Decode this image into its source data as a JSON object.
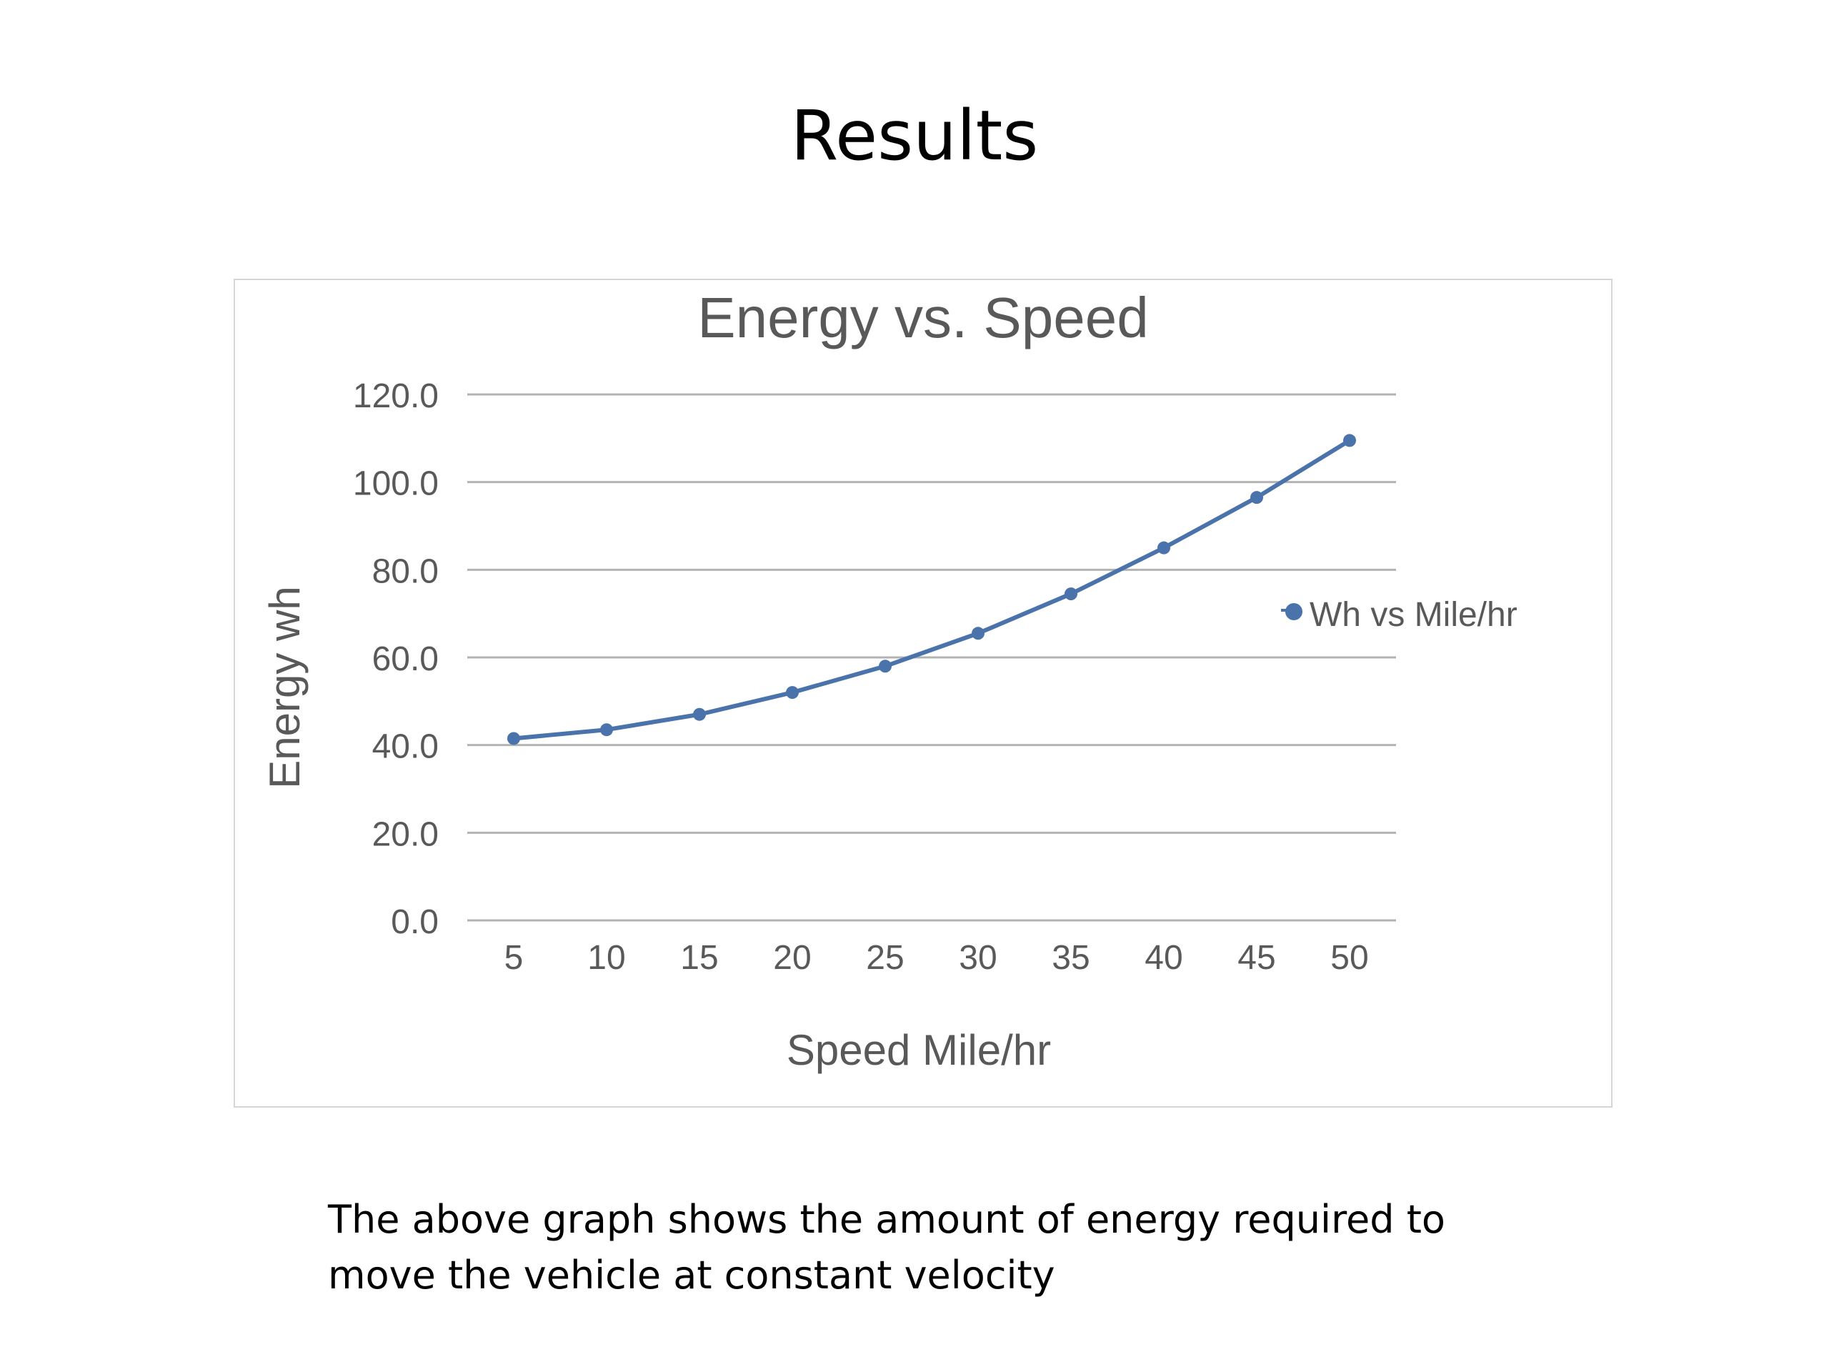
{
  "slide": {
    "title": "Results",
    "caption_lines": [
      "The above graph shows the amount of energy required to",
      "move the vehicle at constant velocity"
    ]
  },
  "colors": {
    "series": "#4a72ab",
    "grid": "#b3b3b3",
    "text": "#595959"
  },
  "chart_data": {
    "type": "line",
    "title": "Energy vs. Speed",
    "xlabel": "Speed Mile/hr",
    "ylabel": "Energy wh",
    "categories": [
      "5",
      "10",
      "15",
      "20",
      "25",
      "30",
      "35",
      "40",
      "45",
      "50"
    ],
    "series": [
      {
        "name": "Wh vs Mile/hr",
        "values": [
          41.5,
          43.5,
          47.0,
          52.0,
          58.0,
          65.5,
          74.5,
          85.0,
          96.5,
          109.5
        ]
      }
    ],
    "ylim": [
      0,
      120
    ],
    "y_ticks": [
      "0.0",
      "20.0",
      "40.0",
      "60.0",
      "80.0",
      "100.0",
      "120.0"
    ],
    "grid": true,
    "legend_position": "right"
  }
}
